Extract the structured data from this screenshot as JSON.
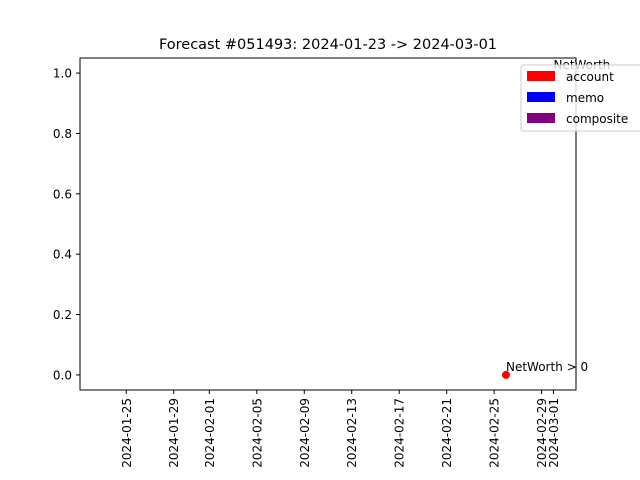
{
  "chart_data": {
    "type": "scatter",
    "title": "Forecast #051493: 2024-01-23 -> 2024-03-01",
    "xlabel": "",
    "ylabel": "",
    "x_range": [
      "2024-01-23",
      "2024-03-01"
    ],
    "ylim": [
      -0.05,
      1.05
    ],
    "x_ticks": [
      "2024-01-25",
      "2024-01-29",
      "2024-02-01",
      "2024-02-05",
      "2024-02-09",
      "2024-02-13",
      "2024-02-17",
      "2024-02-21",
      "2024-02-25",
      "2024-02-29",
      "2024-03-01"
    ],
    "y_ticks": [
      0.0,
      0.2,
      0.4,
      0.6,
      0.8,
      1.0
    ],
    "y_tick_labels": [
      "0.0",
      "0.2",
      "0.4",
      "0.6",
      "0.8",
      "1.0"
    ],
    "grid": false,
    "legend_position": "top-right",
    "legend": [
      {
        "label": "account",
        "color": "#ff0000"
      },
      {
        "label": "memo",
        "color": "#0000ff"
      },
      {
        "label": "composite",
        "color": "#800080"
      }
    ],
    "points": [
      {
        "x": "2024-02-26",
        "y": 0,
        "label": "NetWorth > 0",
        "color": "#ff0000"
      }
    ],
    "annotations": [
      {
        "x": "2024-03-01",
        "y": 1.0,
        "text": "NetWorth",
        "color": "#aaaaaa"
      }
    ]
  }
}
